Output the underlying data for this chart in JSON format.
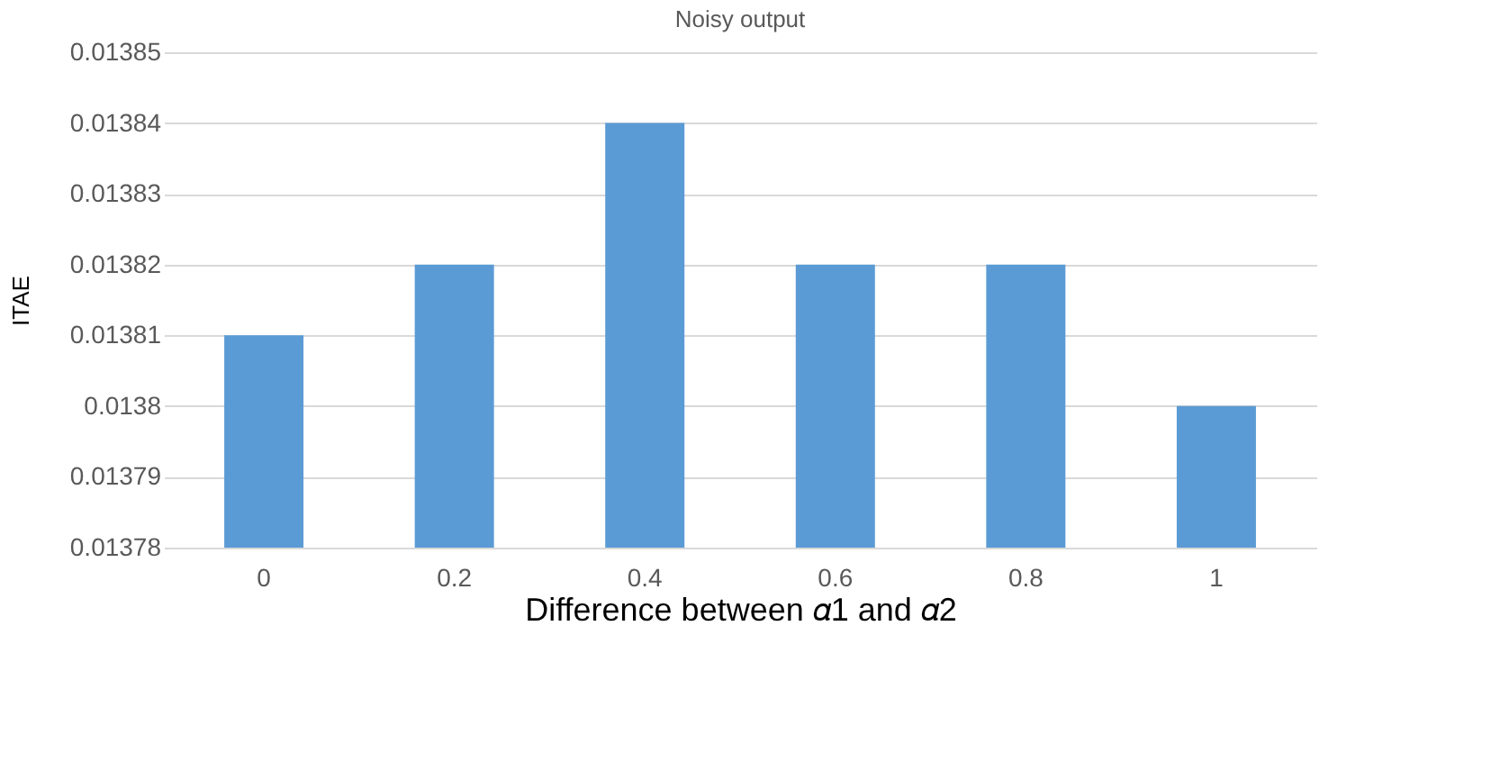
{
  "chart_data": {
    "type": "bar",
    "title": "Noisy output",
    "xlabel": "Difference between 𝛼1 and 𝛼2",
    "ylabel": "ITAE",
    "categories": [
      "0",
      "0.2",
      "0.4",
      "0.6",
      "0.8",
      "1"
    ],
    "values": [
      0.01381,
      0.01382,
      0.01384,
      0.01382,
      0.01382,
      0.0138
    ],
    "color": "#5b9bd5",
    "ylim": [
      0.01378,
      0.01385
    ],
    "yticks": [
      0.01378,
      0.01379,
      0.0138,
      0.01381,
      0.01382,
      0.01383,
      0.01384,
      0.01385
    ],
    "grid": "y"
  }
}
